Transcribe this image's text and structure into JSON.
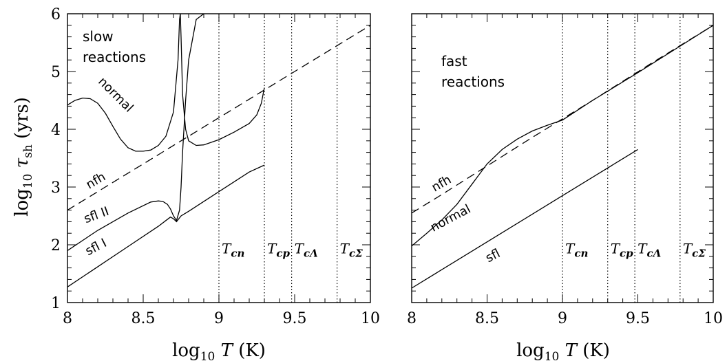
{
  "chart_data": [
    {
      "type": "line",
      "panel": "left",
      "xlabel": "log10 T (K)",
      "ylabel": "log10 τ_sh (yrs)",
      "xlim": [
        8,
        10
      ],
      "ylim": [
        1,
        6
      ],
      "xticks": [
        "8",
        "8.5",
        "9",
        "9.5",
        "10"
      ],
      "yticks": [
        "1",
        "2",
        "3",
        "4",
        "5",
        "6"
      ],
      "annotation": [
        "slow",
        "reactions"
      ],
      "vlines": [
        {
          "x": 9.0,
          "label": "T",
          "sub": "cn"
        },
        {
          "x": 9.3,
          "label": "T",
          "sub": "cp"
        },
        {
          "x": 9.48,
          "label": "T",
          "sub": "cΛ"
        },
        {
          "x": 9.78,
          "label": "T",
          "sub": "cΣ"
        }
      ],
      "series": [
        {
          "name": "nfh",
          "style": "dashed",
          "label_pos": {
            "x": 8.2,
            "y": 3.05,
            "angle": -30
          },
          "x": [
            8.0,
            8.2,
            8.4,
            8.6,
            8.8,
            9.0,
            9.2,
            9.4,
            9.6,
            9.8,
            10.0
          ],
          "y": [
            2.6,
            2.92,
            3.24,
            3.56,
            3.88,
            4.2,
            4.52,
            4.84,
            5.16,
            5.48,
            5.8
          ]
        },
        {
          "name": "normal",
          "style": "solid",
          "label_pos": {
            "x": 8.3,
            "y": 4.55,
            "angle": 45
          },
          "x": [
            8.0,
            8.05,
            8.1,
            8.15,
            8.2,
            8.25,
            8.3,
            8.35,
            8.4,
            8.45,
            8.5,
            8.55,
            8.6,
            8.65,
            8.7,
            8.73,
            8.74,
            8.745
          ],
          "y": [
            4.42,
            4.5,
            4.54,
            4.53,
            4.45,
            4.28,
            4.05,
            3.83,
            3.68,
            3.62,
            3.62,
            3.64,
            3.72,
            3.88,
            4.3,
            5.2,
            5.9,
            6.0
          ]
        },
        {
          "name": "",
          "style": "solid",
          "x": [
            8.745,
            8.75,
            8.76,
            8.78,
            8.8,
            8.85,
            8.9,
            9.0,
            9.1,
            9.2,
            9.25,
            9.28,
            9.3
          ],
          "y": [
            6.0,
            5.6,
            4.6,
            4.0,
            3.8,
            3.72,
            3.73,
            3.82,
            3.95,
            4.1,
            4.25,
            4.45,
            4.72
          ]
        },
        {
          "name": "sfl II",
          "style": "solid",
          "label_pos": {
            "x": 8.2,
            "y": 2.45,
            "angle": -20
          },
          "x": [
            8.0,
            8.2,
            8.4,
            8.55,
            8.6,
            8.63,
            8.66,
            8.68,
            8.7,
            8.72,
            8.74,
            8.75,
            8.76,
            8.78,
            8.8,
            8.85,
            8.9
          ],
          "y": [
            1.9,
            2.25,
            2.55,
            2.74,
            2.76,
            2.75,
            2.7,
            2.62,
            2.5,
            2.42,
            2.6,
            3.0,
            3.6,
            4.5,
            5.2,
            5.9,
            6.0
          ]
        },
        {
          "name": "sfl I",
          "style": "solid",
          "label_pos": {
            "x": 8.2,
            "y": 1.9,
            "angle": -27
          },
          "x": [
            8.0,
            8.2,
            8.4,
            8.6,
            8.65,
            8.68,
            8.7,
            8.72,
            8.75,
            8.8,
            9.0,
            9.2,
            9.3
          ],
          "y": [
            1.27,
            1.62,
            1.97,
            2.32,
            2.42,
            2.48,
            2.45,
            2.4,
            2.5,
            2.58,
            2.92,
            3.26,
            3.38
          ]
        }
      ]
    },
    {
      "type": "line",
      "panel": "right",
      "xlabel": "log10 T (K)",
      "xlim": [
        8,
        10
      ],
      "ylim": [
        1,
        6
      ],
      "xticks": [
        "8",
        "8.5",
        "9",
        "9.5",
        "10"
      ],
      "annotation": [
        "fast",
        "reactions"
      ],
      "vlines": [
        {
          "x": 9.0,
          "label": "T",
          "sub": "cn"
        },
        {
          "x": 9.3,
          "label": "T",
          "sub": "cp"
        },
        {
          "x": 9.48,
          "label": "T",
          "sub": "cΛ"
        },
        {
          "x": 9.78,
          "label": "T",
          "sub": "cΣ"
        }
      ],
      "series": [
        {
          "name": "nfh",
          "style": "dashed",
          "label_pos": {
            "x": 8.21,
            "y": 3.0,
            "angle": -30
          },
          "x": [
            8.0,
            8.2,
            8.4,
            8.6,
            8.8,
            9.0,
            9.2,
            9.4,
            9.6,
            9.8,
            10.0
          ],
          "y": [
            2.55,
            2.87,
            3.2,
            3.53,
            3.86,
            4.18,
            4.5,
            4.83,
            5.16,
            5.48,
            5.8
          ]
        },
        {
          "name": "normal",
          "style": "solid",
          "label_pos": {
            "x": 8.27,
            "y": 2.4,
            "angle": -28
          },
          "x": [
            8.0,
            8.1,
            8.2,
            8.3,
            8.4,
            8.5,
            8.6,
            8.7,
            8.8,
            8.9,
            9.0,
            9.2,
            9.5,
            10.0
          ],
          "y": [
            1.98,
            2.2,
            2.43,
            2.7,
            3.05,
            3.4,
            3.65,
            3.83,
            3.97,
            4.07,
            4.16,
            4.5,
            4.98,
            5.8
          ]
        },
        {
          "name": "sfl",
          "style": "solid",
          "label_pos": {
            "x": 8.55,
            "y": 1.75,
            "angle": -27
          },
          "x": [
            8.0,
            8.5,
            9.0,
            9.5
          ],
          "y": [
            1.25,
            2.05,
            2.85,
            3.65
          ]
        }
      ]
    }
  ]
}
